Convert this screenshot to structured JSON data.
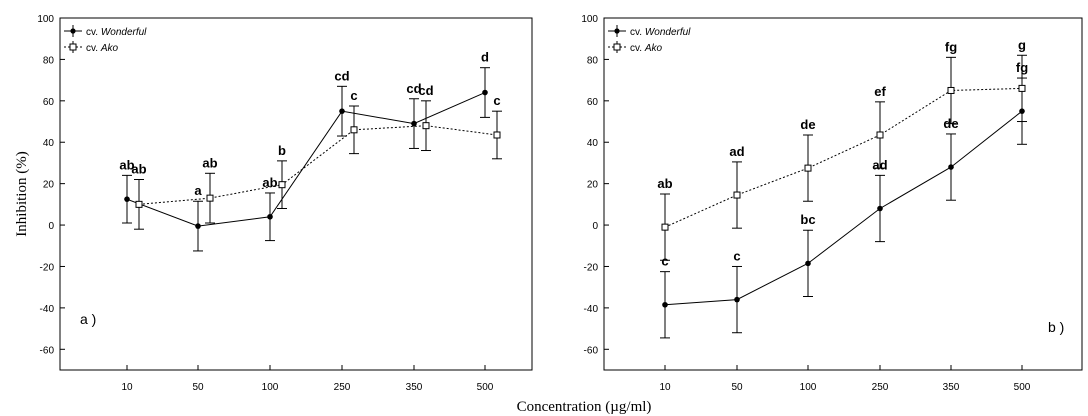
{
  "figure": {
    "ylabel": "Inhibition (%)",
    "xlabel": "Concentration (µg/ml)"
  },
  "chart_data": [
    {
      "type": "line",
      "panel_label": "a )",
      "categories": [
        "10",
        "50",
        "100",
        "250",
        "350",
        "500"
      ],
      "ylim": [
        -70,
        100
      ],
      "yticks": [
        -60,
        -40,
        -20,
        0,
        20,
        40,
        60,
        80,
        100
      ],
      "legend_placement": "top-left",
      "grid": false,
      "series": [
        {
          "name": "cv. Wonderful",
          "marker": "filled-circle",
          "line": "solid",
          "values": [
            12.5,
            -0.5,
            4,
            55,
            49,
            64
          ],
          "errors": [
            11.5,
            12,
            11.5,
            12,
            12,
            12
          ],
          "labels": [
            "ab",
            "a",
            "ab",
            "cd",
            "cd",
            "d"
          ]
        },
        {
          "name": "cv. Ako",
          "marker": "open-square",
          "line": "dotted",
          "values": [
            10,
            13,
            19.5,
            46,
            48,
            43.5
          ],
          "errors": [
            12,
            12,
            11.5,
            11.5,
            12,
            11.5
          ],
          "labels": [
            "ab",
            "ab",
            "b",
            "c",
            "cd",
            "c"
          ]
        }
      ]
    },
    {
      "type": "line",
      "panel_label": "b )",
      "categories": [
        "10",
        "50",
        "100",
        "250",
        "350",
        "500"
      ],
      "ylim": [
        -70,
        100
      ],
      "yticks": [
        -60,
        -40,
        -20,
        0,
        20,
        40,
        60,
        80,
        100
      ],
      "legend_placement": "top-left",
      "grid": false,
      "series": [
        {
          "name": "cv. Wonderful",
          "marker": "filled-circle",
          "line": "solid",
          "values": [
            -38.5,
            -36,
            -18.5,
            8,
            28,
            55
          ],
          "errors": [
            16,
            16,
            16,
            16,
            16,
            16
          ],
          "labels": [
            "c",
            "c",
            "bc",
            "ad",
            "de",
            "fg"
          ]
        },
        {
          "name": "cv. Ako",
          "marker": "open-square",
          "line": "dotted",
          "values": [
            -1,
            14.5,
            27.5,
            43.5,
            65,
            66
          ],
          "errors": [
            16,
            16,
            16,
            16,
            16,
            16
          ],
          "labels": [
            "ab",
            "ad",
            "de",
            "ef",
            "fg",
            "g"
          ]
        }
      ]
    }
  ]
}
